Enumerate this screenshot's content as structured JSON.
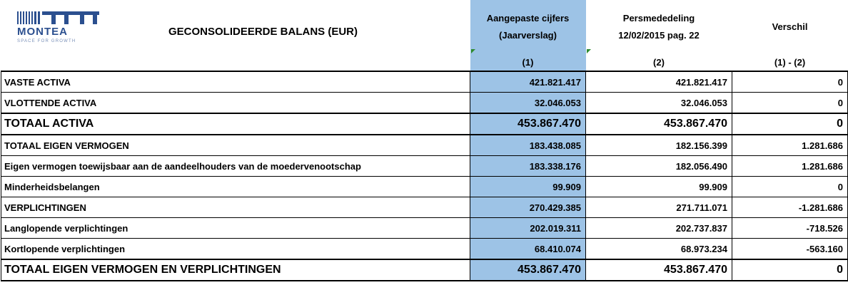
{
  "header": {
    "logo": {
      "name": "MONTEA",
      "tagline": "SPACE FOR GROWTH"
    },
    "title": "GECONSOLIDEERDE BALANS (EUR)",
    "columns": [
      {
        "lines": [
          "Aangepaste cijfers",
          "(Jaarverslag)"
        ],
        "sub": "(1)"
      },
      {
        "lines": [
          "Persmededeling",
          "12/02/2015 pag. 22"
        ],
        "sub": "(2)"
      },
      {
        "lines": [
          "Verschil"
        ],
        "sub": "(1) - (2)"
      }
    ]
  },
  "table": {
    "rows": [
      [
        "VASTE ACTIVA",
        "421.821.417",
        "421.821.417",
        "0"
      ],
      [
        "VLOTTENDE ACTIVA",
        "32.046.053",
        "32.046.053",
        "0"
      ],
      [
        "TOTAAL ACTIVA",
        "453.867.470",
        "453.867.470",
        "0"
      ],
      [
        "TOTAAL EIGEN VERMOGEN",
        "183.438.085",
        "182.156.399",
        "1.281.686"
      ],
      [
        "Eigen vermogen toewijsbaar aan de aandeelhouders van de moedervenootschap",
        "183.338.176",
        "182.056.490",
        "1.281.686"
      ],
      [
        "Minderheidsbelangen",
        "99.909",
        "99.909",
        "0"
      ],
      [
        "VERPLICHTINGEN",
        "270.429.385",
        "271.711.071",
        "-1.281.686"
      ],
      [
        "Langlopende verplichtingen",
        "202.019.311",
        "202.737.837",
        "-718.526"
      ],
      [
        "Kortlopende verplichtingen",
        "68.410.074",
        "68.973.234",
        "-563.160"
      ],
      [
        "TOTAAL EIGEN VERMOGEN EN VERPLICHTINGEN",
        "453.867.470",
        "453.867.470",
        "0"
      ]
    ]
  }
}
